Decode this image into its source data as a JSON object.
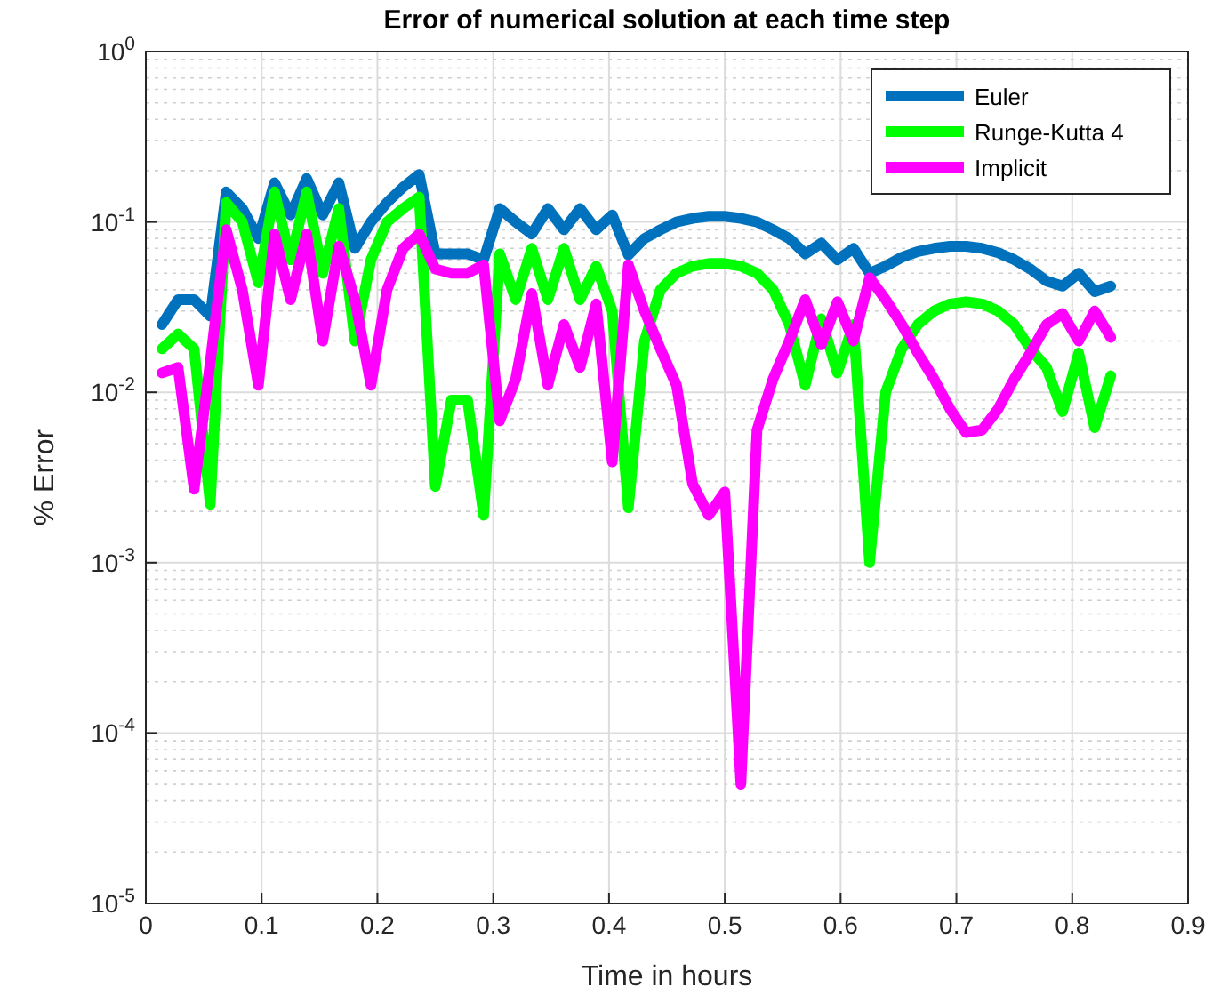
{
  "chart_data": {
    "type": "line",
    "title": "Error of numerical solution at each time step",
    "xlabel": "Time in hours",
    "ylabel": "% Error",
    "x": [
      0.0139,
      0.0278,
      0.0417,
      0.0556,
      0.0694,
      0.0833,
      0.0972,
      0.1111,
      0.125,
      0.1389,
      0.1528,
      0.1667,
      0.1806,
      0.1944,
      0.2083,
      0.2222,
      0.2361,
      0.25,
      0.2639,
      0.2778,
      0.2917,
      0.3056,
      0.3194,
      0.3333,
      0.3472,
      0.3611,
      0.375,
      0.3889,
      0.4028,
      0.4167,
      0.4306,
      0.4444,
      0.4583,
      0.4722,
      0.4861,
      0.5,
      0.5139,
      0.5278,
      0.5417,
      0.5556,
      0.5694,
      0.5833,
      0.5972,
      0.6111,
      0.625,
      0.6389,
      0.6528,
      0.6667,
      0.6806,
      0.6944,
      0.7083,
      0.7222,
      0.7361,
      0.75,
      0.7639,
      0.7778,
      0.7917,
      0.8056,
      0.8194,
      0.8333
    ],
    "series": [
      {
        "name": "Euler",
        "color": "#0072bd",
        "values": [
          0.025,
          0.035,
          0.035,
          0.028,
          0.15,
          0.12,
          0.08,
          0.17,
          0.11,
          0.18,
          0.11,
          0.17,
          0.07,
          0.1,
          0.13,
          0.16,
          0.19,
          0.065,
          0.065,
          0.065,
          0.06,
          0.12,
          0.1,
          0.085,
          0.12,
          0.09,
          0.12,
          0.09,
          0.11,
          0.064,
          0.08,
          0.09,
          0.1,
          0.105,
          0.108,
          0.108,
          0.105,
          0.1,
          0.09,
          0.08,
          0.065,
          0.075,
          0.06,
          0.07,
          0.05,
          0.055,
          0.062,
          0.067,
          0.07,
          0.072,
          0.072,
          0.07,
          0.066,
          0.06,
          0.053,
          0.045,
          0.042,
          0.05,
          0.039,
          0.042
        ]
      },
      {
        "name": "Runge-Kutta 4",
        "color": "#00ff00",
        "values": [
          0.018,
          0.022,
          0.018,
          0.0022,
          0.13,
          0.1,
          0.044,
          0.15,
          0.06,
          0.15,
          0.05,
          0.12,
          0.02,
          0.06,
          0.1,
          0.12,
          0.14,
          0.0028,
          0.009,
          0.009,
          0.0019,
          0.065,
          0.035,
          0.07,
          0.035,
          0.07,
          0.035,
          0.055,
          0.03,
          0.0021,
          0.02,
          0.04,
          0.05,
          0.055,
          0.057,
          0.057,
          0.055,
          0.05,
          0.04,
          0.025,
          0.011,
          0.027,
          0.013,
          0.025,
          0.001,
          0.01,
          0.018,
          0.025,
          0.03,
          0.033,
          0.034,
          0.033,
          0.03,
          0.025,
          0.018,
          0.014,
          0.0077,
          0.017,
          0.0062,
          0.0125
        ]
      },
      {
        "name": "Implicit",
        "color": "#ff00ff",
        "values": [
          0.013,
          0.014,
          0.0027,
          0.015,
          0.09,
          0.04,
          0.011,
          0.085,
          0.035,
          0.085,
          0.02,
          0.072,
          0.035,
          0.011,
          0.04,
          0.07,
          0.085,
          0.053,
          0.05,
          0.05,
          0.056,
          0.0068,
          0.012,
          0.038,
          0.011,
          0.025,
          0.014,
          0.033,
          0.0039,
          0.056,
          0.03,
          0.018,
          0.011,
          0.0029,
          0.0019,
          0.0026,
          5e-05,
          0.006,
          0.012,
          0.02,
          0.035,
          0.019,
          0.034,
          0.02,
          0.047,
          0.035,
          0.025,
          0.017,
          0.012,
          0.008,
          0.0058,
          0.006,
          0.008,
          0.012,
          0.017,
          0.025,
          0.029,
          0.02,
          0.03,
          0.021
        ]
      }
    ],
    "xlim": [
      0,
      0.9
    ],
    "xticks": [
      0,
      0.1,
      0.2,
      0.3,
      0.4,
      0.5,
      0.6,
      0.7,
      0.8,
      0.9
    ],
    "ylim": [
      1e-05,
      1
    ],
    "yticks": [
      {
        "value": 1e-05,
        "label": "10$^{-5}$"
      },
      {
        "value": 0.0001,
        "label": "10$^{-4}$"
      },
      {
        "value": 0.001,
        "label": "10$^{-3}$"
      },
      {
        "value": 0.01,
        "label": "10$^{-2}$"
      },
      {
        "value": 0.1,
        "label": "10$^{-1}$"
      },
      {
        "value": 1,
        "label": "10$^{0}$"
      }
    ],
    "log": "y",
    "grid": true,
    "legend": "top right",
    "marker": "none",
    "line_style": "solid"
  }
}
